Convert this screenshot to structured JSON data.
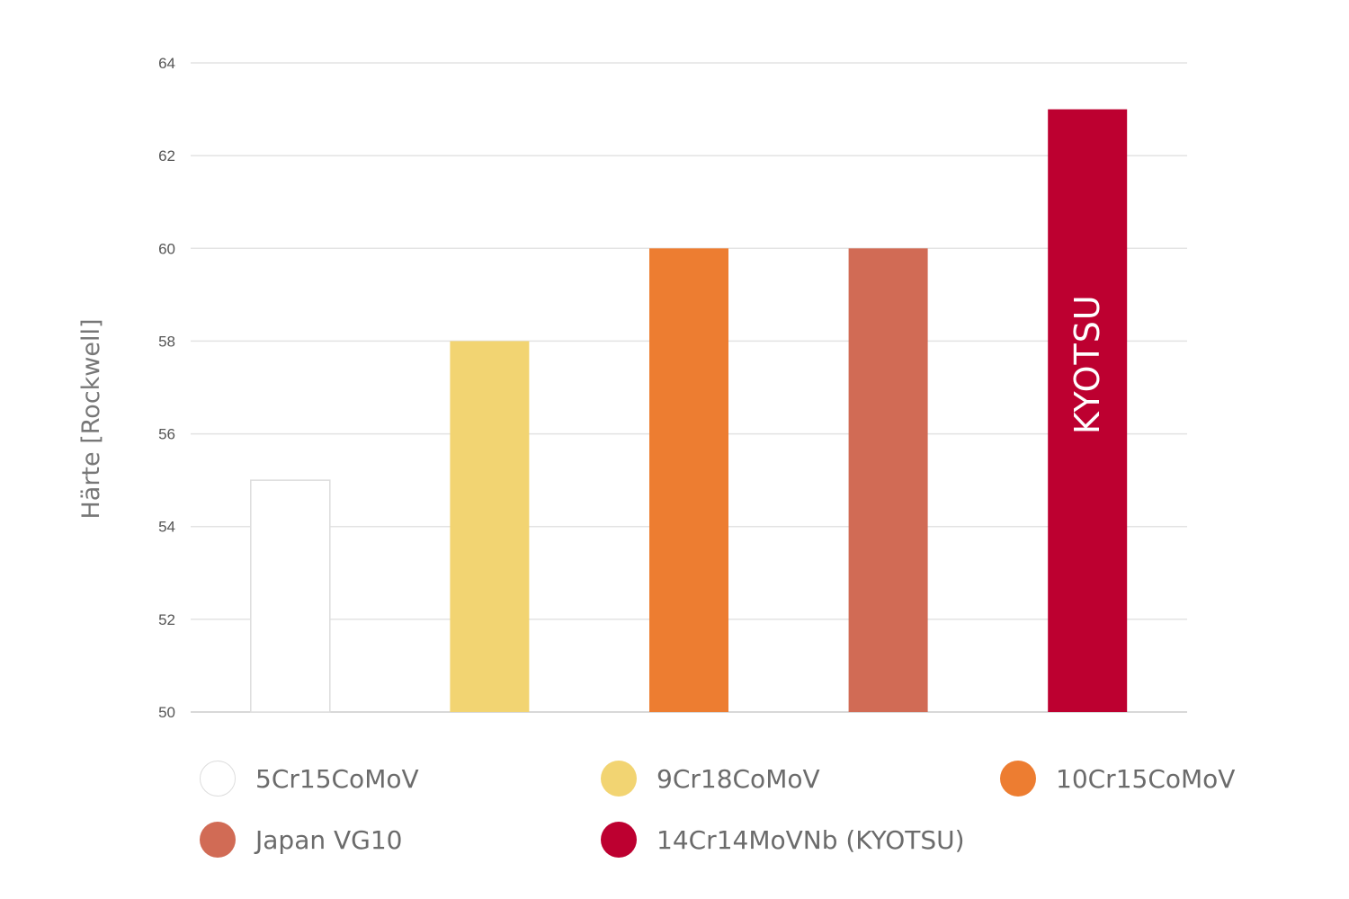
{
  "chart_data": {
    "type": "bar",
    "title": "",
    "xlabel": "",
    "ylabel": "Härte [Rockwell]",
    "ylim": [
      50,
      64
    ],
    "yticks": [
      50,
      52,
      54,
      56,
      58,
      60,
      62,
      64
    ],
    "grid": true,
    "legend_position": "bottom",
    "bars": [
      {
        "name": "5Cr15CoMoV",
        "value": 55,
        "color": "#ffffff",
        "stroke": "#dddddd",
        "label": ""
      },
      {
        "name": "9Cr18CoMoV",
        "value": 58,
        "color": "#f2d472",
        "label": ""
      },
      {
        "name": "10Cr15CoMoV",
        "value": 60,
        "color": "#ed7d31",
        "label": ""
      },
      {
        "name": "Japan VG10",
        "value": 60,
        "color": "#d16b55",
        "label": ""
      },
      {
        "name": "14Cr14MoVNb (KYOTSU)",
        "value": 63,
        "color": "#bd0030",
        "label": "KYOTSU"
      }
    ]
  }
}
